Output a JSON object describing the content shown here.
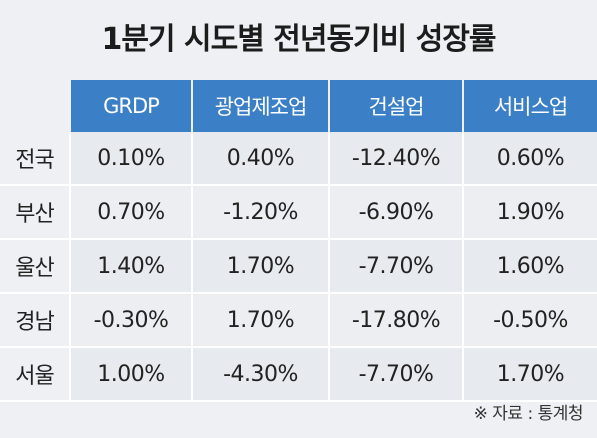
{
  "title": "1분기 시도별 전년동기비 성장률",
  "source": "※ 자료 : 통계청",
  "chart_data": {
    "type": "table",
    "title": "1분기 시도별 전년동기비 성장률",
    "columns": [
      "GRDP",
      "광업제조업",
      "건설업",
      "서비스업"
    ],
    "rows": [
      {
        "region": "전국",
        "values": [
          "0.10%",
          "0.40%",
          "-12.40%",
          "0.60%"
        ]
      },
      {
        "region": "부산",
        "values": [
          "0.70%",
          "-1.20%",
          "-6.90%",
          "1.90%"
        ]
      },
      {
        "region": "울산",
        "values": [
          "1.40%",
          "1.70%",
          "-7.70%",
          "1.60%"
        ]
      },
      {
        "region": "경남",
        "values": [
          "-0.30%",
          "1.70%",
          "-17.80%",
          "-0.50%"
        ]
      },
      {
        "region": "서울",
        "values": [
          "1.00%",
          "-4.30%",
          "-7.70%",
          "1.70%"
        ]
      }
    ]
  }
}
